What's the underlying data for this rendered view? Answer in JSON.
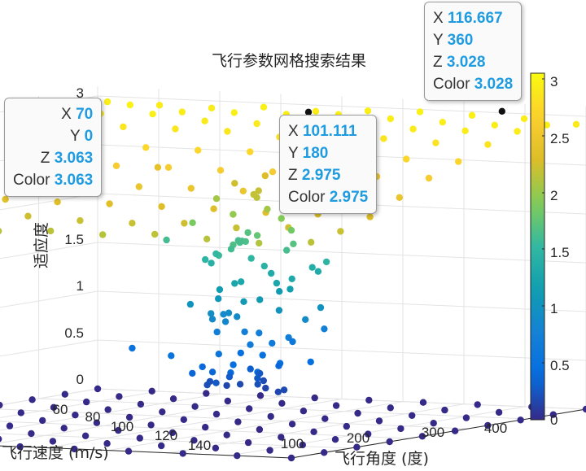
{
  "chart_data": {
    "type": "scatter",
    "title": "飞行参数网格搜索结果",
    "xlabel": "飞行角度 (度)",
    "ylabel": "飞行速度 (m/s)",
    "zlabel": "适应度",
    "x_ticks": [
      "100",
      "200",
      "300",
      "400"
    ],
    "y_ticks": [
      "60",
      "80",
      "100",
      "120",
      "140"
    ],
    "z_ticks": [
      "0",
      "0.5",
      "1",
      "1.5",
      "3"
    ],
    "xlim": [
      0,
      400
    ],
    "ylim": [
      50,
      150
    ],
    "zlim": [
      0,
      3.1
    ],
    "colorbar": {
      "ticks": [
        "0",
        "0.5",
        "1",
        "1.5",
        "2",
        "2.5",
        "3"
      ],
      "range": [
        0,
        3.063
      ],
      "colormap": "parula"
    },
    "grid": true,
    "datatips": [
      {
        "x": "70",
        "y": "0",
        "z": "3.063",
        "color": "3.063"
      },
      {
        "x": "101.111",
        "y": "180",
        "z": "2.975",
        "color": "2.975"
      },
      {
        "x": "116.667",
        "y": "360",
        "z": "3.028",
        "color": "3.028"
      }
    ]
  },
  "datatip_keys": {
    "x": "X",
    "y": "Y",
    "z": "Z",
    "color": "Color"
  }
}
